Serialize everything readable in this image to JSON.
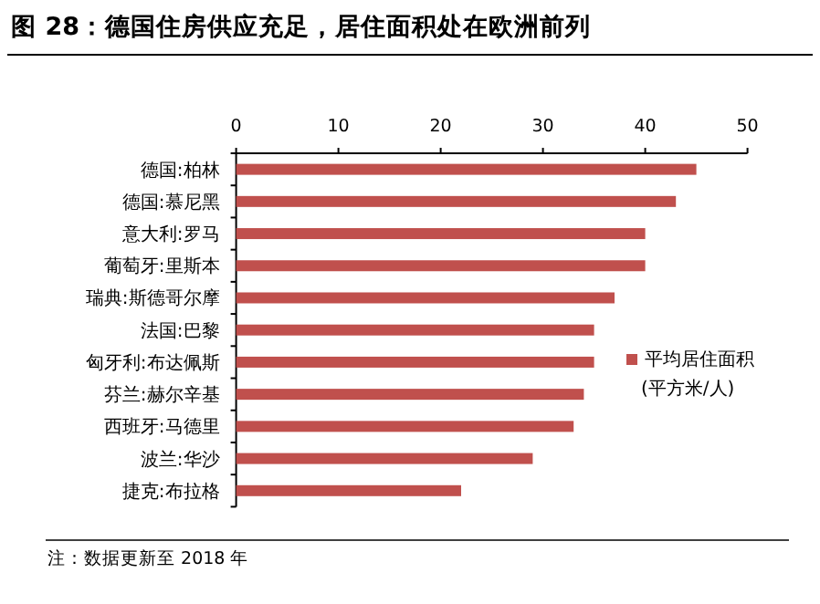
{
  "chart_data": {
    "type": "bar",
    "orientation": "horizontal",
    "title": "图 28：德国住房供应充足，居住面积处在欧洲前列",
    "categories": [
      "德国:柏林",
      "德国:慕尼黑",
      "意大利:罗马",
      "葡萄牙:里斯本",
      "瑞典:斯德哥尔摩",
      "法国:巴黎",
      "匈牙利:布达佩斯",
      "芬兰:赫尔辛基",
      "西班牙:马德里",
      "波兰:华沙",
      "捷克:布拉格"
    ],
    "series": [
      {
        "name": "平均居住面积(平方米/人)",
        "color": "#c0504d",
        "values": [
          45,
          43,
          40,
          40,
          37,
          35,
          35,
          34,
          33,
          29,
          22
        ]
      }
    ],
    "xlim": [
      0,
      50
    ],
    "xticks": [
      0,
      10,
      20,
      30,
      40,
      50
    ],
    "legend": "right",
    "annotations": [
      "注：数据更新至 2018 年"
    ]
  }
}
